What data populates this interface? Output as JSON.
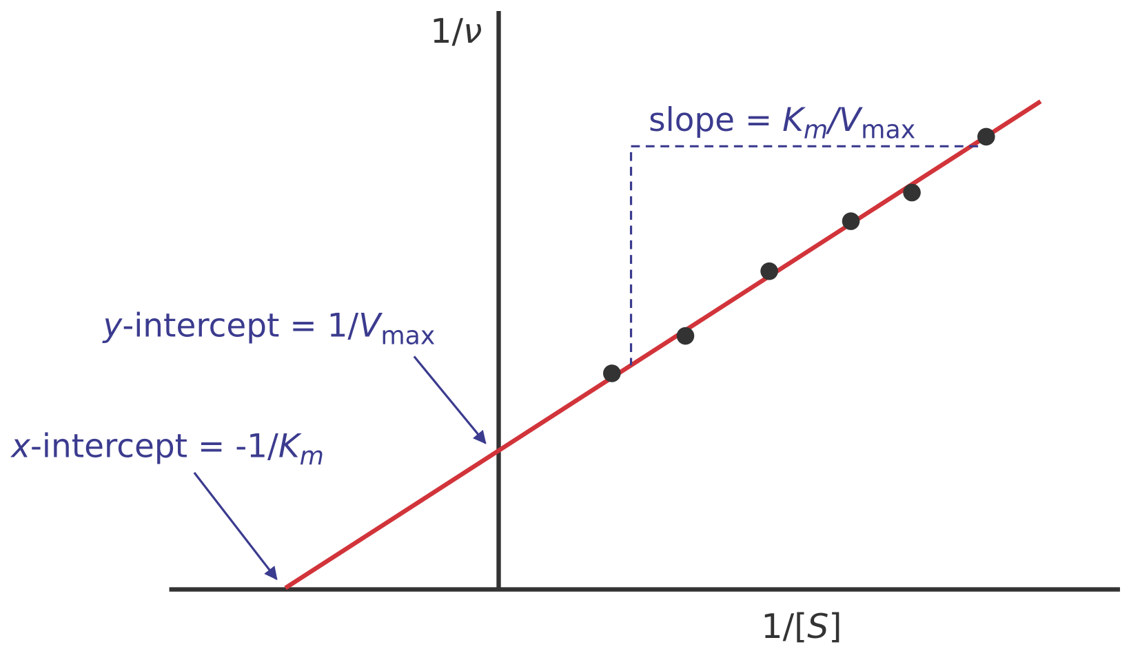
{
  "y_axis_label": {
    "a": "1/",
    "b": "ν"
  },
  "x_axis_label": {
    "a": "1/[",
    "b": "S",
    "c": "]"
  },
  "slope_label": {
    "a": "slope = ",
    "b": "K",
    "c": "m",
    "d": "/",
    "e": "V",
    "f": "max"
  },
  "y_intercept_label": {
    "a": "y",
    "b": "-intercept = 1/",
    "c": "V",
    "d": "max"
  },
  "x_intercept_label": {
    "a": "x",
    "b": "-intercept = -1/",
    "c": "K",
    "d": "m"
  }
}
